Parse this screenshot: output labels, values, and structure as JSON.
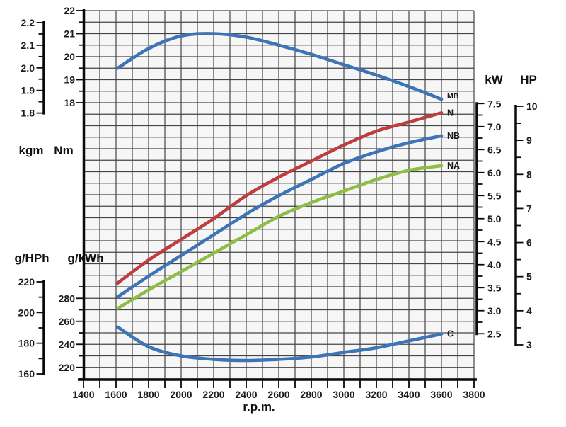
{
  "chart_data": {
    "type": "line",
    "title": "",
    "xlabel": "r.p.m.",
    "grid": true,
    "legend_position": "curve-end-labels",
    "x_axis": {
      "min": 1400,
      "max": 3800,
      "tick_step": 200,
      "minor_step": 100,
      "label": "r.p.m."
    },
    "unit_labels": {
      "kgm": "kgm",
      "Nm": "Nm",
      "gHPh": "g/HPh",
      "gkWh": "g/kWh",
      "kW": "kW",
      "HP": "HP"
    },
    "left_axes": [
      {
        "id": "kgm",
        "label": "kgm",
        "min": 1.8,
        "max": 2.2,
        "tick_step": 0.1,
        "minor_step": 0.05,
        "decimals": 1
      },
      {
        "id": "Nm",
        "label": "Nm",
        "min": 18,
        "max": 22,
        "tick_step": 1,
        "minor_step": 0.5,
        "decimals": 0
      },
      {
        "id": "gHPh",
        "label": "g/HPh",
        "min": 160,
        "max": 220,
        "tick_step": 20,
        "minor_step": 10,
        "decimals": 0
      },
      {
        "id": "gkWh",
        "label": "g/kWh",
        "min": 210,
        "max": 290,
        "tick_step": 20,
        "minor_step": 10,
        "decimals": 0
      }
    ],
    "right_axes": [
      {
        "id": "kW",
        "label": "kW",
        "min": 2.5,
        "max": 7.5,
        "tick_step": 0.5,
        "minor_step": 0.25,
        "decimals": 1
      },
      {
        "id": "HP",
        "label": "HP",
        "min": 3,
        "max": 10,
        "tick_step": 1,
        "minor_step": 0.5,
        "decimals": 0
      }
    ],
    "series": [
      {
        "name": "MB",
        "unit": "Nm",
        "axis": "Nm",
        "color": "#3d74b5",
        "rpm": [
          1610,
          1800,
          2000,
          2200,
          2400,
          2600,
          2800,
          3000,
          3200,
          3400,
          3600
        ],
        "values": [
          19.5,
          20.35,
          20.9,
          21.0,
          20.85,
          20.5,
          20.1,
          19.65,
          19.2,
          18.7,
          18.15
        ]
      },
      {
        "name": "N",
        "unit": "kW",
        "axis": "kW",
        "color": "#bf3d3e",
        "rpm": [
          1610,
          1800,
          2000,
          2200,
          2400,
          2600,
          2800,
          3000,
          3200,
          3400,
          3600
        ],
        "values": [
          3.6,
          4.1,
          4.55,
          5.0,
          5.5,
          5.9,
          6.25,
          6.6,
          6.9,
          7.1,
          7.3
        ]
      },
      {
        "name": "NB",
        "unit": "kW",
        "axis": "kW",
        "color": "#3d74b5",
        "rpm": [
          1610,
          1800,
          2000,
          2200,
          2400,
          2600,
          2800,
          3000,
          3200,
          3400,
          3600
        ],
        "values": [
          3.3,
          3.75,
          4.2,
          4.65,
          5.1,
          5.5,
          5.85,
          6.2,
          6.45,
          6.65,
          6.8
        ]
      },
      {
        "name": "NA",
        "unit": "kW",
        "axis": "kW",
        "color": "#8fbc45",
        "rpm": [
          1610,
          1800,
          2000,
          2200,
          2400,
          2600,
          2800,
          3000,
          3200,
          3400,
          3600
        ],
        "values": [
          3.05,
          3.45,
          3.85,
          4.25,
          4.65,
          5.05,
          5.35,
          5.6,
          5.85,
          6.05,
          6.15
        ]
      },
      {
        "name": "C",
        "unit": "g/kWh",
        "axis": "gkWh",
        "color": "#3d74b5",
        "rpm": [
          1610,
          1800,
          2000,
          2200,
          2400,
          2600,
          2800,
          3000,
          3200,
          3400,
          3600
        ],
        "values": [
          255,
          238,
          230,
          227,
          226,
          227,
          229,
          233,
          237,
          243,
          249
        ]
      }
    ],
    "colors": {
      "curve_blue": "#3d74b5",
      "curve_red": "#bf3d3e",
      "curve_green": "#8fbc45",
      "grid_line": "#454545",
      "plot_background": "#f6f6f6",
      "axis_black": "#0a0a0a",
      "text": "#1c1c1c"
    }
  }
}
